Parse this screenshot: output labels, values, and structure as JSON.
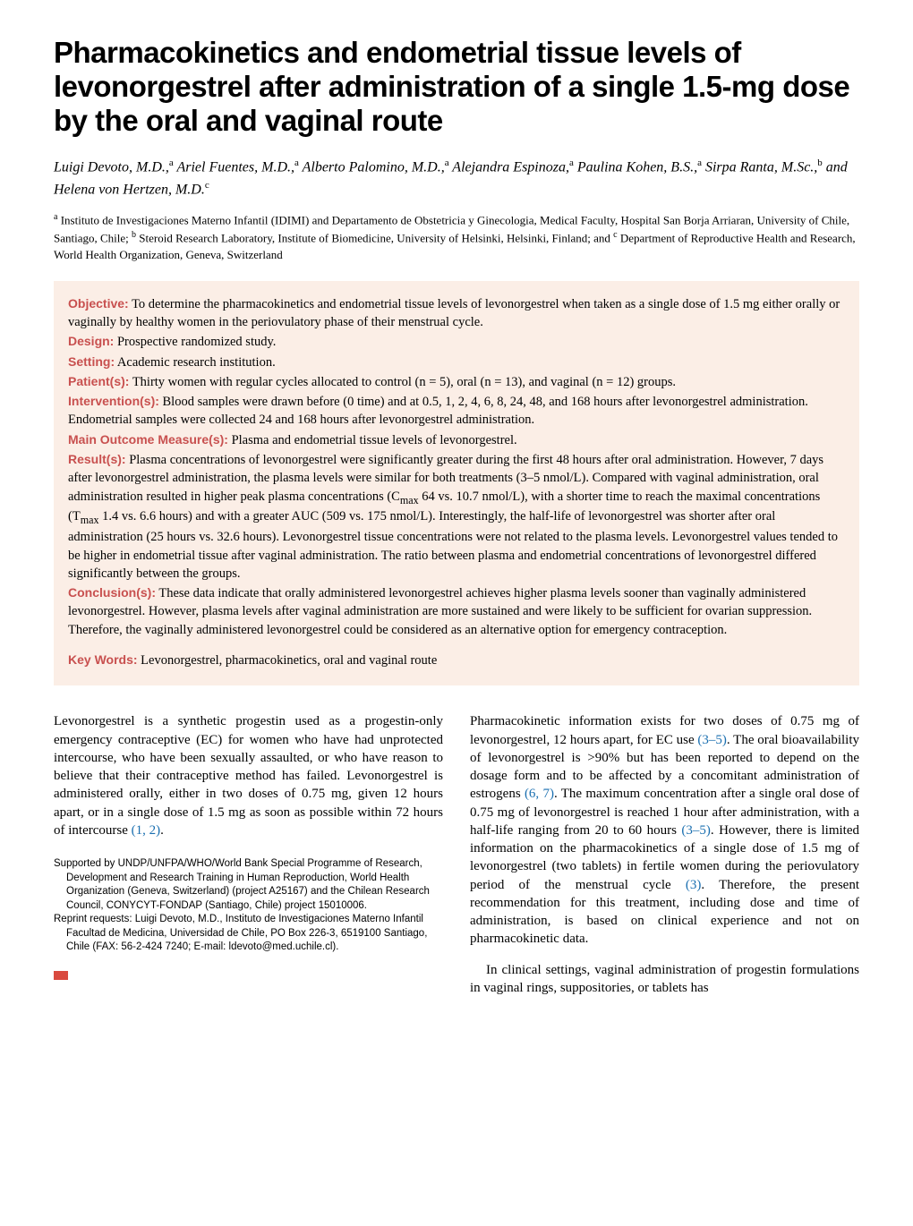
{
  "title": "Pharmacokinetics and endometrial tissue levels of levonorgestrel after administration of a single 1.5-mg dose by the oral and vaginal route",
  "authors_html": "Luigi Devoto, M.D.,<sup>a</sup> Ariel Fuentes, M.D.,<sup>a</sup> Alberto Palomino, M.D.,<sup>a</sup> Alejandra Espinoza,<sup>a</sup> Paulina Kohen, B.S.,<sup>a</sup> Sirpa Ranta, M.Sc.,<sup>b</sup> and Helena von Hertzen, M.D.<sup>c</sup>",
  "affiliations_html": "<sup>a</sup> Instituto de Investigaciones Materno Infantil (IDIMI) and Departamento de Obstetricia y Ginecologia, Medical Faculty, Hospital San Borja Arriaran, University of Chile, Santiago, Chile; <sup>b</sup> Steroid Research Laboratory, Institute of Biomedicine, University of Helsinki, Helsinki, Finland; and <sup>c</sup> Department of Reproductive Health and Research, World Health Organization, Geneva, Switzerland",
  "abstract": {
    "objective_label": "Objective:",
    "objective": " To determine the pharmacokinetics and endometrial tissue levels of levonorgestrel when taken as a single dose of 1.5 mg either orally or vaginally by healthy women in the periovulatory phase of their menstrual cycle.",
    "design_label": "Design:",
    "design": " Prospective randomized study.",
    "setting_label": "Setting:",
    "setting": " Academic research institution.",
    "patients_label": "Patient(s):",
    "patients": " Thirty women with regular cycles allocated to control (n = 5), oral (n = 13), and vaginal (n = 12) groups.",
    "interventions_label": "Intervention(s):",
    "interventions": " Blood samples were drawn before (0 time) and at 0.5, 1, 2, 4, 6, 8, 24, 48, and 168 hours after levonorgestrel administration. Endometrial samples were collected 24 and 168 hours after levonorgestrel administration.",
    "outcome_label": "Main Outcome Measure(s):",
    "outcome": " Plasma and endometrial tissue levels of levonorgestrel.",
    "results_label": "Result(s):",
    "results_html": " Plasma concentrations of levonorgestrel were significantly greater during the first 48 hours after oral administration. However, 7 days after levonorgestrel administration, the plasma levels were similar for both treatments (3–5 nmol/L). Compared with vaginal administration, oral administration resulted in higher peak plasma concentrations (C<sub>max</sub> 64 vs. 10.7 nmol/L), with a shorter time to reach the maximal concentrations (T<sub>max</sub> 1.4 vs. 6.6 hours) and with a greater AUC (509 vs. 175 nmol/L). Interestingly, the half-life of levonorgestrel was shorter after oral administration (25 hours vs. 32.6 hours). Levonorgestrel tissue concentrations were not related to the plasma levels. Levonorgestrel values tended to be higher in endometrial tissue after vaginal administration. The ratio between plasma and endometrial concentrations of levonorgestrel differed significantly between the groups.",
    "conclusions_label": "Conclusion(s):",
    "conclusions": " These data indicate that orally administered levonorgestrel achieves higher plasma levels sooner than vaginally administered levonorgestrel. However, plasma levels after vaginal administration are more sustained and were likely to be sufficient for ovarian suppression. Therefore, the vaginally administered levonorgestrel could be considered as an alternative option for emergency contraception.",
    "keywords_label": "Key Words:",
    "keywords": " Levonorgestrel, pharmacokinetics, oral and vaginal route"
  },
  "body": {
    "left_p1_html": "Levonorgestrel is a synthetic progestin used as a progestin-only emergency contraceptive (EC) for women who have had unprotected intercourse, who have been sexually assaulted, or who have reason to believe that their contraceptive method has failed. Levonorgestrel is administered orally, either in two doses of 0.75 mg, given 12 hours apart, or in a single dose of 1.5 mg as soon as possible within 72 hours of intercourse <span class=\"link\">(1, 2)</span>.",
    "right_p1_html": "Pharmacokinetic information exists for two doses of 0.75 mg of levonorgestrel, 12 hours apart, for EC use <span class=\"link\">(3–5)</span>. The oral bioavailability of levonorgestrel is >90% but has been reported to depend on the dosage form and to be affected by a concomitant administration of estrogens <span class=\"link\">(6, 7)</span>. The maximum concentration after a single oral dose of 0.75 mg of levonorgestrel is reached 1 hour after administration, with a half-life ranging from 20 to 60 hours <span class=\"link\">(3–5)</span>. However, there is limited information on the pharmacokinetics of a single dose of 1.5 mg of levonorgestrel (two tablets) in fertile women during the periovulatory period of the menstrual cycle <span class=\"link\">(3)</span>. Therefore, the present recommendation for this treatment, including dose and time of administration, is based on clinical experience and not on pharmacokinetic data.",
    "right_p2": "In clinical settings, vaginal administration of progestin formulations in vaginal rings, suppositories, or tablets has"
  },
  "footnotes": {
    "support": "Supported by UNDP/UNFPA/WHO/World Bank Special Programme of Research, Development and Research Training in Human Reproduction, World Health Organization (Geneva, Switzerland) (project A25167) and the Chilean Research Council, CONYCYT-FONDAP (Santiago, Chile) project 15010006.",
    "reprint": "Reprint requests: Luigi Devoto, M.D., Instituto de Investigaciones Materno Infantil Facultad de Medicina, Universidad de Chile, PO Box 226-3, 6519100 Santiago, Chile (FAX: 56-2-424 7240; E-mail: ldevoto@med.uchile.cl)."
  },
  "colors": {
    "abstract_bg": "#fbeee6",
    "section_label": "#c8504f",
    "link": "#1a6fb0",
    "red_square": "#d94a3f"
  }
}
